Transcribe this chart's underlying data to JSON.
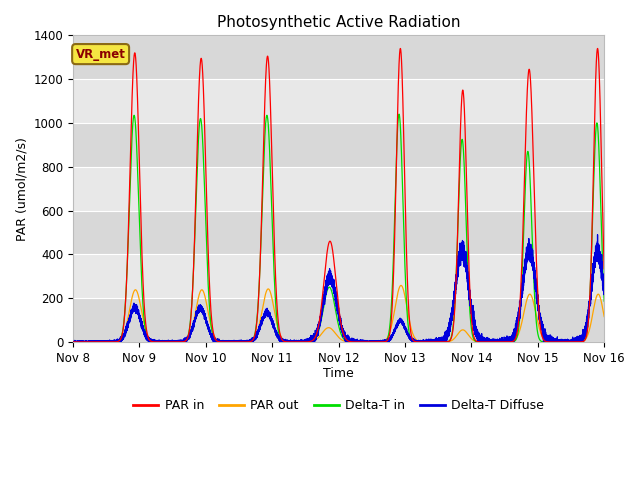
{
  "title": "Photosynthetic Active Radiation",
  "ylabel": "PAR (umol/m2/s)",
  "xlabel": "Time",
  "xlim": [
    0,
    8
  ],
  "ylim": [
    0,
    1400
  ],
  "yticks": [
    0,
    200,
    400,
    600,
    800,
    1000,
    1200,
    1400
  ],
  "xtick_labels": [
    "Nov 8",
    "Nov 9",
    "Nov 10",
    "Nov 11",
    "Nov 12",
    "Nov 13",
    "Nov 14",
    "Nov 15",
    "Nov 16"
  ],
  "xtick_positions": [
    0,
    1,
    2,
    3,
    4,
    5,
    6,
    7,
    8
  ],
  "legend_labels": [
    "PAR in",
    "PAR out",
    "Delta-T in",
    "Delta-T Diffuse"
  ],
  "annotation_text": "VR_met",
  "annotation_box_color": "#f5e642",
  "annotation_border_color": "#8B6914",
  "colors": {
    "PAR_in": "#ff0000",
    "PAR_out": "#ffa500",
    "Delta_T_in": "#00dd00",
    "Delta_T_Diffuse": "#0000dd"
  },
  "background_color": "#e8e8e8",
  "background_band_color": "#d8d8d8",
  "grid_color": "#ffffff",
  "title_fontsize": 11,
  "axis_label_fontsize": 9,
  "par_in": {
    "centers": [
      0.93,
      1.93,
      2.93,
      3.87,
      4.93,
      5.87,
      6.87,
      7.9
    ],
    "peaks": [
      1320,
      1295,
      1305,
      460,
      1340,
      1150,
      1245,
      1340
    ],
    "widths": [
      0.07,
      0.07,
      0.07,
      0.09,
      0.06,
      0.06,
      0.07,
      0.06
    ]
  },
  "par_out": {
    "centers": [
      0.94,
      1.94,
      2.94,
      3.85,
      4.94,
      5.87,
      6.88,
      7.91
    ],
    "peaks": [
      238,
      238,
      242,
      65,
      258,
      55,
      218,
      218
    ],
    "widths": [
      0.09,
      0.09,
      0.09,
      0.1,
      0.09,
      0.08,
      0.09,
      0.08
    ]
  },
  "dt_in": {
    "centers": [
      0.92,
      1.92,
      2.92,
      3.86,
      4.91,
      5.86,
      6.85,
      7.89
    ],
    "peaks": [
      1035,
      1020,
      1035,
      250,
      1040,
      925,
      870,
      1000
    ],
    "widths": [
      0.07,
      0.07,
      0.07,
      0.09,
      0.06,
      0.06,
      0.06,
      0.06
    ]
  },
  "dt_diff": {
    "centers": [
      0.93,
      1.92,
      2.92,
      3.87,
      4.93,
      5.86,
      6.87,
      7.9
    ],
    "peaks": [
      155,
      155,
      135,
      295,
      95,
      415,
      420,
      415
    ],
    "widths": [
      0.09,
      0.09,
      0.09,
      0.1,
      0.08,
      0.1,
      0.1,
      0.09
    ]
  }
}
